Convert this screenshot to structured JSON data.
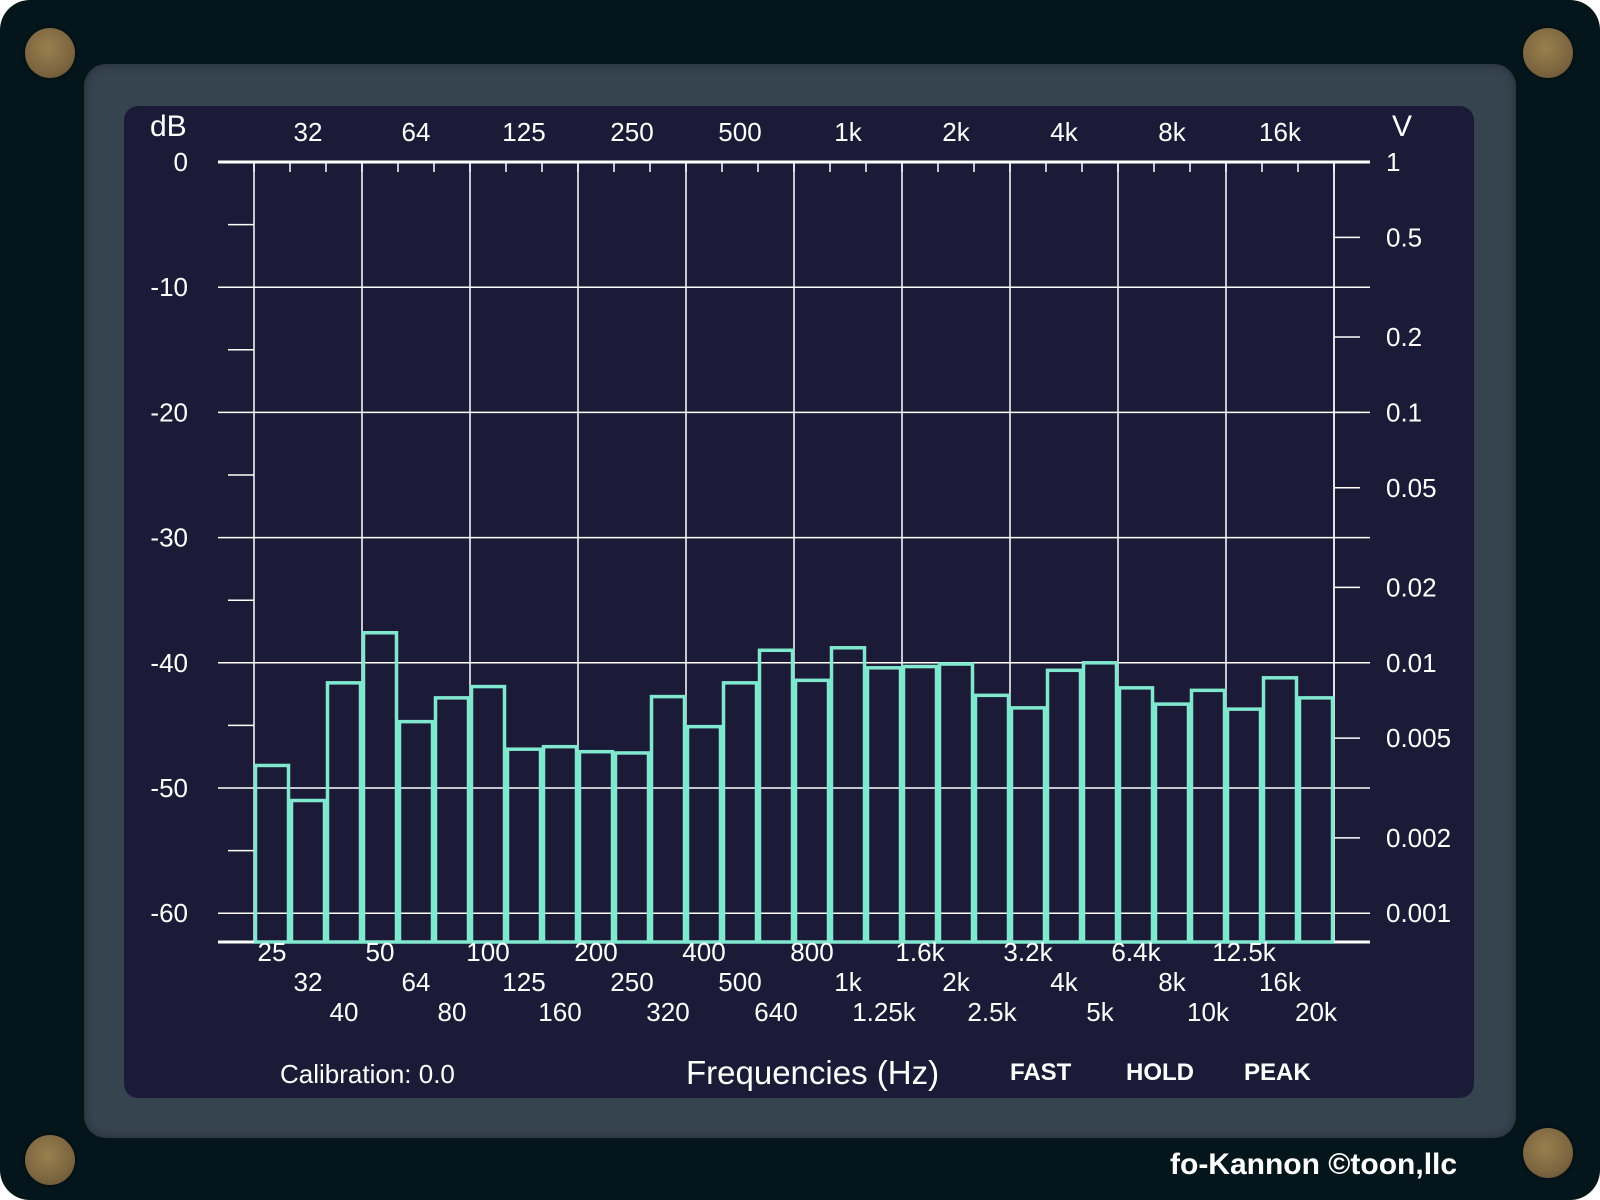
{
  "footer": {
    "calibration": "Calibration: 0.0",
    "xlabel": "Frequencies (Hz)",
    "fast": "FAST",
    "hold": "HOLD",
    "peak": "PEAK"
  },
  "brand": "fo-Kannon  ©toon,llc",
  "colors": {
    "device": "#04161b",
    "bezel": "#36444f",
    "screen": "#1b1b38",
    "bars": "#7fe8cf",
    "grid": "#ffffff"
  },
  "chart_data": {
    "type": "bar",
    "left_axis_title": "dB",
    "right_axis_title": "V",
    "left_ticks": [
      "0",
      "-10",
      "-20",
      "-30",
      "-40",
      "-50",
      "-60"
    ],
    "left_tick_values": [
      0,
      -10,
      -20,
      -30,
      -40,
      -50,
      -60
    ],
    "right_ticks": [
      "1",
      "0.5",
      "0.2",
      "0.1",
      "0.05",
      "0.02",
      "0.01",
      "0.005",
      "0.002",
      "0.001"
    ],
    "right_tick_values": [
      1,
      0.5,
      0.2,
      0.1,
      0.05,
      0.02,
      0.01,
      0.005,
      0.002,
      0.001
    ],
    "top_ticks": [
      "32",
      "64",
      "125",
      "250",
      "500",
      "1k",
      "2k",
      "4k",
      "8k",
      "16k"
    ],
    "categories": [
      "25",
      "32",
      "40",
      "50",
      "64",
      "80",
      "100",
      "125",
      "160",
      "200",
      "250",
      "320",
      "400",
      "500",
      "640",
      "800",
      "1k",
      "1.25k",
      "1.6k",
      "2k",
      "2.5k",
      "3.2k",
      "4k",
      "5k",
      "6.4k",
      "8k",
      "10k",
      "12.5k",
      "16k",
      "20k"
    ],
    "values": [
      -48.2,
      -51.0,
      -41.6,
      -37.6,
      -44.7,
      -42.8,
      -41.9,
      -46.9,
      -46.7,
      -47.1,
      -47.2,
      -42.7,
      -45.1,
      -41.6,
      -39.0,
      -41.4,
      -38.8,
      -40.4,
      -40.3,
      -40.1,
      -42.6,
      -43.6,
      -40.6,
      -40.0,
      -42.0,
      -43.3,
      -42.2,
      -43.7,
      -41.2,
      -42.8
    ],
    "ylim": [
      -62.3,
      0
    ],
    "grid": true
  }
}
